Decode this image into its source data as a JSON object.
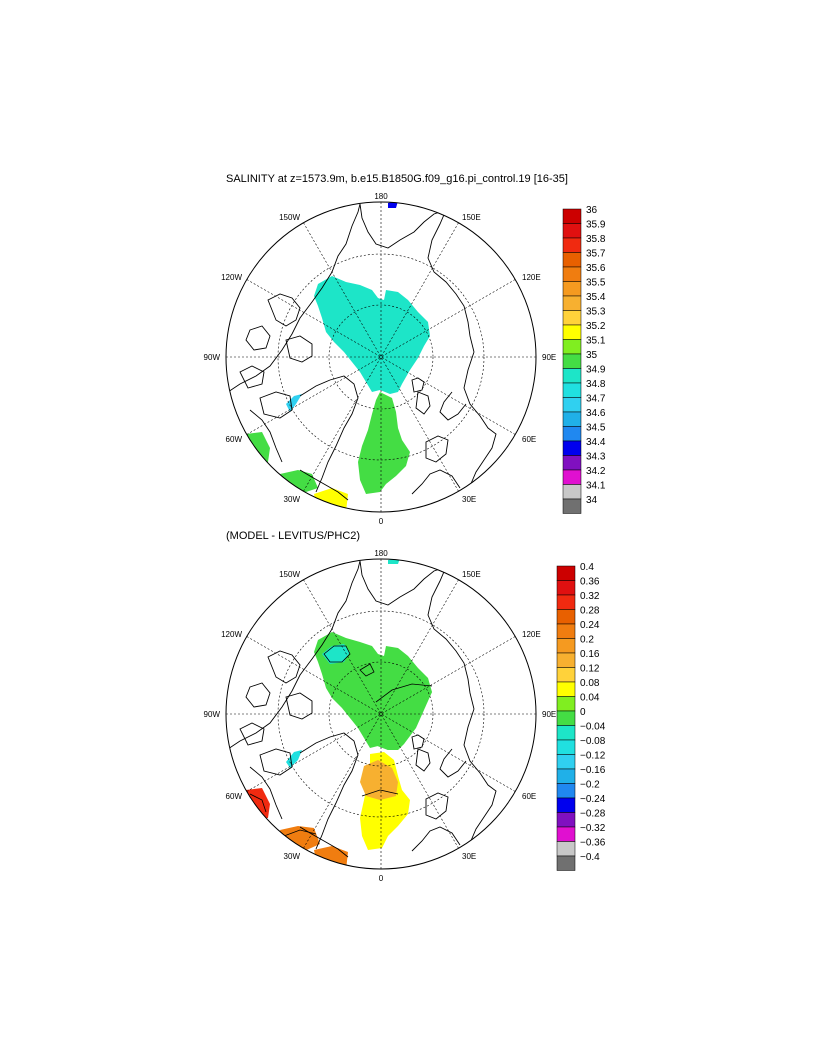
{
  "page": {
    "background": "#ffffff"
  },
  "panels": [
    {
      "id": "salinity",
      "title": "SALINITY at z=1573.9m, b.e15.B1850G.f09_g16.pi_control.19 [16-35]",
      "lon_labels": [
        "180",
        "150E",
        "120E",
        "90E",
        "60E",
        "30E",
        "0",
        "30W",
        "60W",
        "90W",
        "120W",
        "150W"
      ],
      "colorbar": {
        "labels": [
          "36",
          "35.9",
          "35.8",
          "35.7",
          "35.6",
          "35.5",
          "35.4",
          "35.3",
          "35.2",
          "35.1",
          "35",
          "34.9",
          "34.8",
          "34.7",
          "34.6",
          "34.5",
          "34.4",
          "34.3",
          "34.2",
          "34.1",
          "34"
        ],
        "colors": [
          "#cc0000",
          "#e01010",
          "#f02a10",
          "#e86000",
          "#f07d10",
          "#f59a20",
          "#f7b030",
          "#ffd23a",
          "#ffff00",
          "#80ee20",
          "#44dd44",
          "#1de5c8",
          "#20e0e0",
          "#30d0f0",
          "#20b0e8",
          "#2088f0",
          "#0000ee",
          "#8010c0",
          "#e010d0",
          "#c8c8c8",
          "#707070"
        ]
      }
    },
    {
      "id": "difference",
      "title": "(MODEL - LEVITUS/PHC2)",
      "lon_labels": [
        "180",
        "150E",
        "120E",
        "90E",
        "60E",
        "30E",
        "0",
        "30W",
        "60W",
        "90W",
        "120W",
        "150W"
      ],
      "colorbar": {
        "labels": [
          "0.4",
          "0.36",
          "0.32",
          "0.28",
          "0.24",
          "0.2",
          "0.16",
          "0.12",
          "0.08",
          "0.04",
          "0",
          "−0.04",
          "−0.08",
          "−0.12",
          "−0.16",
          "−0.2",
          "−0.24",
          "−0.28",
          "−0.32",
          "−0.36",
          "−0.4"
        ],
        "colors": [
          "#cc0000",
          "#e01010",
          "#f02a10",
          "#e86000",
          "#f07d10",
          "#f59a20",
          "#f7b030",
          "#ffd23a",
          "#ffff00",
          "#80ee20",
          "#44dd44",
          "#1de5c8",
          "#20e0e0",
          "#30d0f0",
          "#20b0e8",
          "#2088f0",
          "#0000ee",
          "#8010c0",
          "#e010d0",
          "#c8c8c8",
          "#707070"
        ]
      }
    }
  ]
}
